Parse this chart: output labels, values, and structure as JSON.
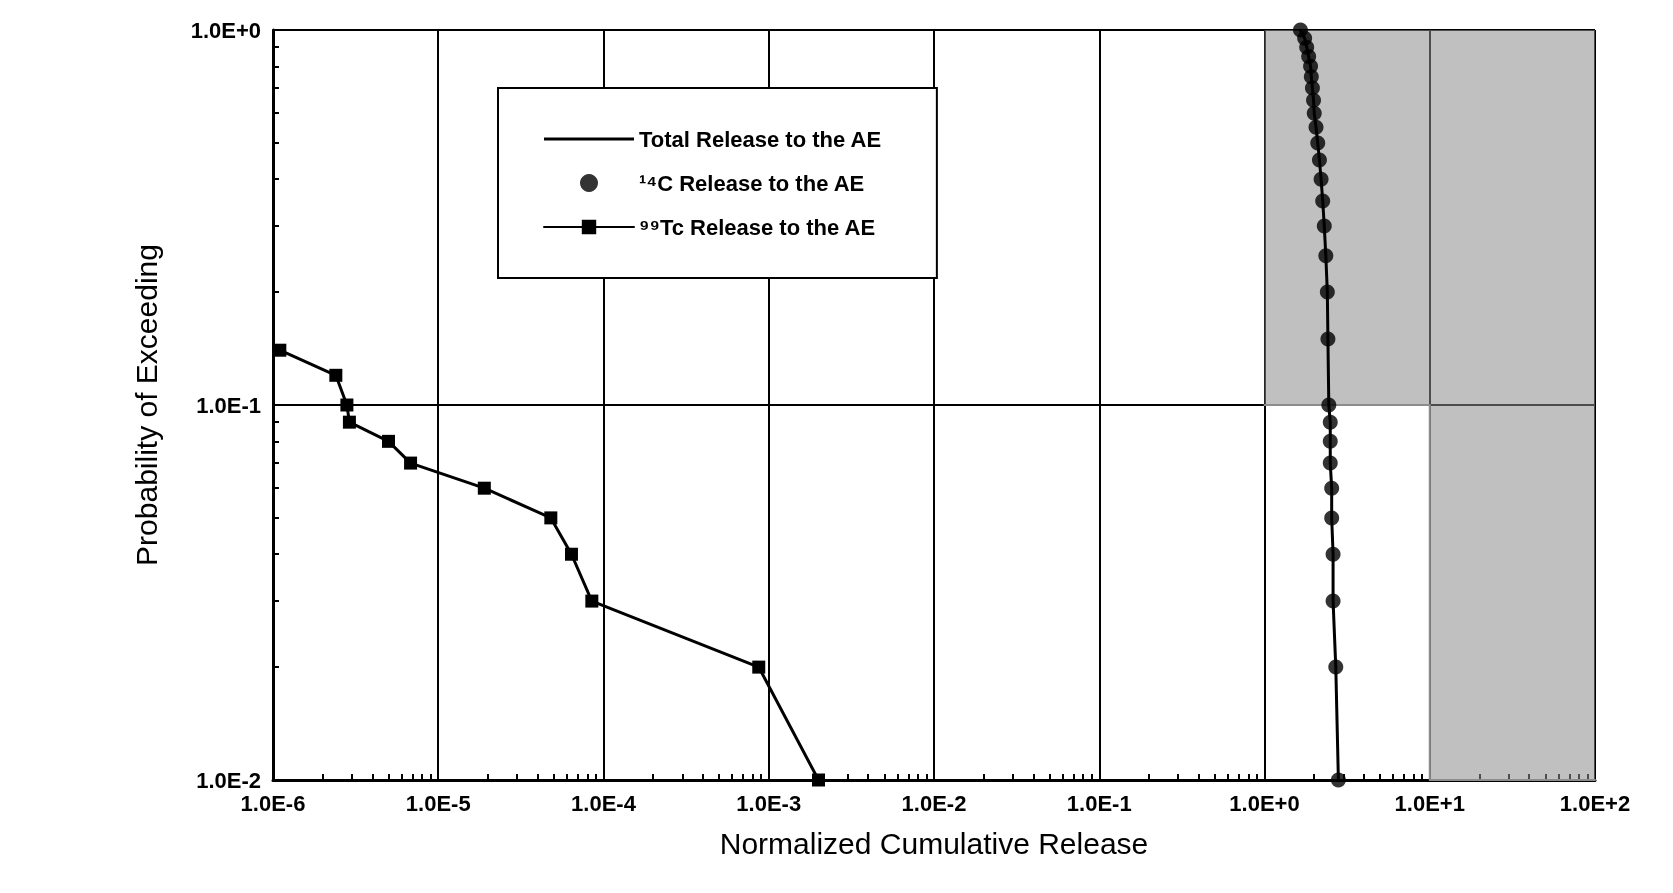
{
  "chart_data": {
    "type": "line",
    "xlabel": "Normalized Cumulative Release",
    "ylabel": "Probability of Exceeding",
    "log": "xy",
    "grid": true,
    "legend": "top left",
    "xlim": [
      1e-06,
      100
    ],
    "ylim": [
      0.01,
      1
    ],
    "xticks": [
      {
        "value": 1e-06,
        "label": "1.0E-6"
      },
      {
        "value": 1e-05,
        "label": "1.0E-5"
      },
      {
        "value": 0.0001,
        "label": "1.0E-4"
      },
      {
        "value": 0.001,
        "label": "1.0E-3"
      },
      {
        "value": 0.01,
        "label": "1.0E-2"
      },
      {
        "value": 0.1,
        "label": "1.0E-1"
      },
      {
        "value": 1,
        "label": "1.0E+0"
      },
      {
        "value": 10,
        "label": "1.0E+1"
      },
      {
        "value": 100,
        "label": "1.0E+2"
      }
    ],
    "yticks": [
      {
        "value": 0.01,
        "label": "1.0E-2"
      },
      {
        "value": 0.1,
        "label": "1.0E-1"
      },
      {
        "value": 1,
        "label": "1.0E+0"
      }
    ],
    "series": [
      {
        "color": "#8c8c8c",
        "marker": "none",
        "x": [
          1,
          10,
          10,
          100
        ],
        "values": [
          0.1,
          0.1,
          0.01,
          0.01
        ],
        "lower": [
          0.1,
          0.1,
          0.01,
          0.01
        ],
        "upper": [
          1,
          1,
          1,
          1
        ]
      },
      {
        "name": "Total Release to the AE",
        "color": "#000000",
        "marker": "none",
        "line_style": "solid",
        "x": [
          1.65,
          1.75,
          1.8,
          1.85,
          1.9,
          1.92,
          1.95,
          1.98,
          2.0,
          2.05,
          2.1,
          2.15,
          2.2,
          2.25,
          2.3,
          2.35,
          2.4,
          2.42,
          2.45,
          2.5,
          2.5,
          2.5,
          2.55,
          2.55,
          2.6,
          2.6,
          2.7,
          2.8
        ],
        "values": [
          1.0,
          0.95,
          0.9,
          0.85,
          0.8,
          0.75,
          0.7,
          0.65,
          0.6,
          0.55,
          0.5,
          0.45,
          0.4,
          0.35,
          0.3,
          0.25,
          0.2,
          0.15,
          0.1,
          0.09,
          0.08,
          0.07,
          0.06,
          0.05,
          0.04,
          0.03,
          0.02,
          0.01
        ]
      },
      {
        "name": "¹⁴C Release to the AE",
        "type": "scatter",
        "color": "#000000",
        "marker": "circle",
        "x": [
          1.65,
          1.75,
          1.8,
          1.85,
          1.9,
          1.92,
          1.95,
          1.98,
          2.0,
          2.05,
          2.1,
          2.15,
          2.2,
          2.25,
          2.3,
          2.35,
          2.4,
          2.42,
          2.45,
          2.5,
          2.5,
          2.5,
          2.55,
          2.55,
          2.6,
          2.6,
          2.7,
          2.8
        ],
        "values": [
          1.0,
          0.95,
          0.9,
          0.85,
          0.8,
          0.75,
          0.7,
          0.65,
          0.6,
          0.55,
          0.5,
          0.45,
          0.4,
          0.35,
          0.3,
          0.25,
          0.2,
          0.15,
          0.1,
          0.09,
          0.08,
          0.07,
          0.06,
          0.05,
          0.04,
          0.03,
          0.02,
          0.01
        ]
      },
      {
        "name": "⁹⁹Tc Release to the AE",
        "color": "#000000",
        "marker": "square",
        "line_style": "solid",
        "x": [
          1.1e-06,
          2.4e-06,
          2.8e-06,
          2.9e-06,
          5e-06,
          6.8e-06,
          1.9e-05,
          4.8e-05,
          6.4e-05,
          8.5e-05,
          0.00087,
          0.002
        ],
        "values": [
          0.14,
          0.12,
          0.1,
          0.09,
          0.08,
          0.07,
          0.06,
          0.05,
          0.04,
          0.03,
          0.02,
          0.01
        ]
      }
    ]
  }
}
